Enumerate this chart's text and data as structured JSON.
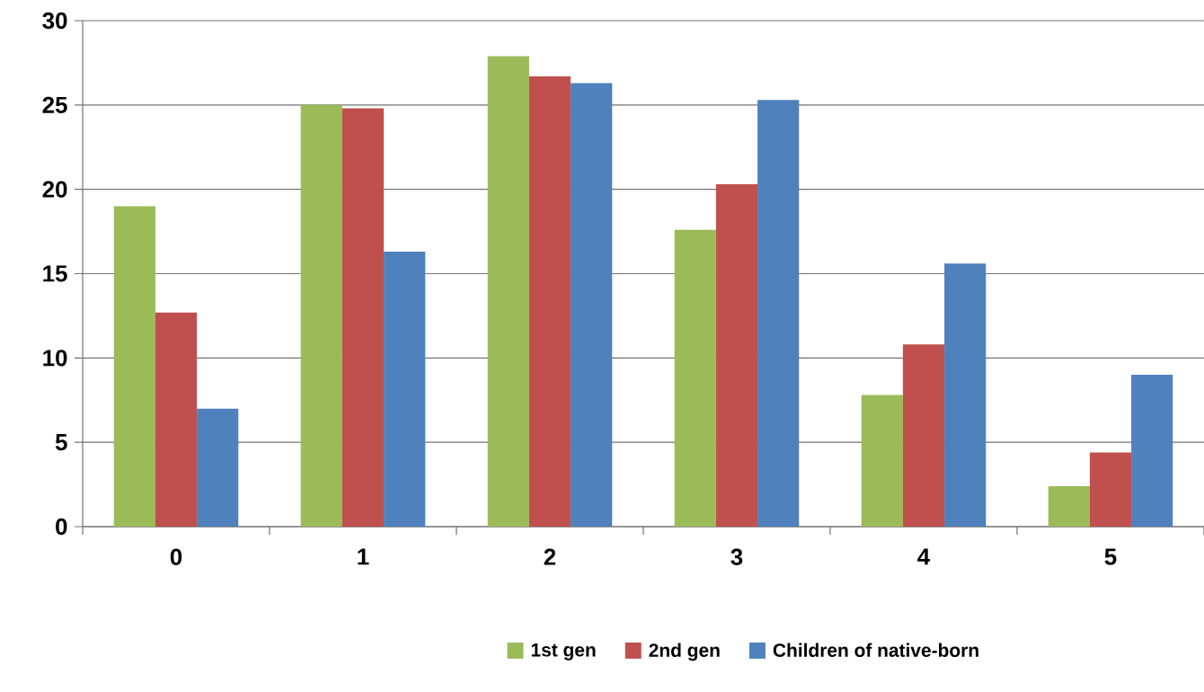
{
  "chart_data": {
    "type": "bar",
    "categories": [
      "0",
      "1",
      "2",
      "3",
      "4",
      "5"
    ],
    "series": [
      {
        "name": "1st gen",
        "color": "#9bbb59",
        "values": [
          19.0,
          25.0,
          27.9,
          17.6,
          7.8,
          2.4
        ]
      },
      {
        "name": "2nd gen",
        "color": "#c0504d",
        "values": [
          12.7,
          24.8,
          26.7,
          20.3,
          10.8,
          4.4
        ]
      },
      {
        "name": "Children of native-born",
        "color": "#4f81bd",
        "values": [
          7.0,
          16.3,
          26.3,
          25.3,
          15.6,
          9.0
        ]
      }
    ],
    "ylim": [
      0,
      30
    ],
    "yticks": [
      0,
      5,
      10,
      15,
      20,
      25,
      30
    ],
    "grid": "y",
    "legend": "bottom"
  }
}
